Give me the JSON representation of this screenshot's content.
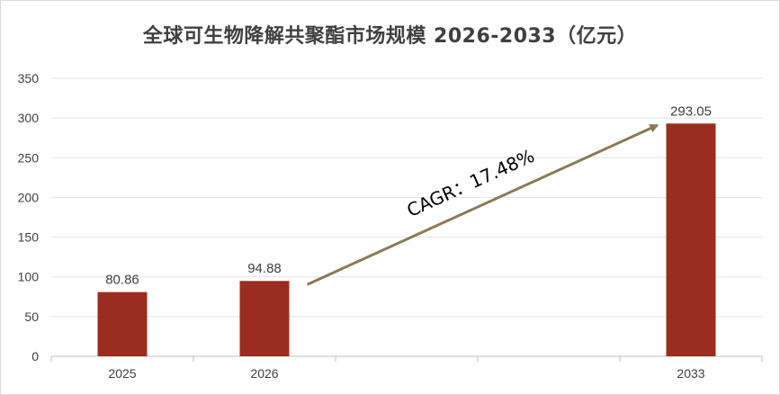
{
  "chart_data": {
    "type": "bar",
    "title": "全球可生物降解共聚酯市场规模 2026-2033（亿元）",
    "categories": [
      "2025",
      "2026",
      "",
      "",
      "2033"
    ],
    "values": [
      80.86,
      94.88,
      null,
      null,
      293.05
    ],
    "data_labels": [
      "80.86",
      "94.88",
      "",
      "",
      "293.05"
    ],
    "ylim": [
      0,
      350
    ],
    "yticks": [
      0,
      50,
      100,
      150,
      200,
      250,
      300,
      350
    ],
    "grid": true,
    "bar_color": "#9b2d20",
    "annotation": {
      "text": "CAGR：17.48%",
      "from_category": "2026",
      "to_category": "2033",
      "arrow_color": "#8b7a55"
    }
  }
}
